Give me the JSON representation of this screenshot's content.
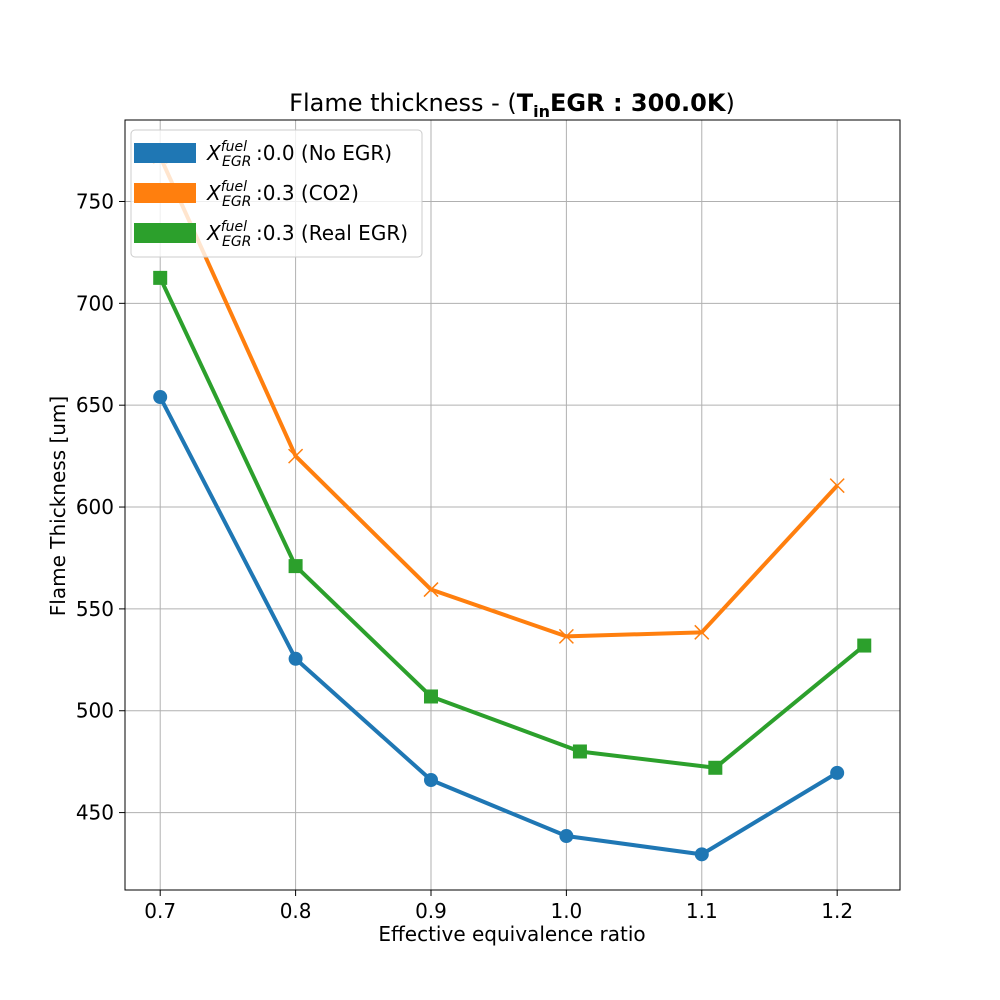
{
  "chart_data": {
    "type": "line",
    "title": {
      "prefix": "Flame thickness - (",
      "bold_main": "T",
      "bold_sub": "in",
      "bold_rest": "EGR : 300.0K",
      "suffix": ")"
    },
    "xlabel": "Effective equivalence ratio",
    "ylabel": "Flame Thickness [um]",
    "xlim": [
      0.674,
      1.2464
    ],
    "ylim": [
      412,
      790
    ],
    "xticks": [
      0.7,
      0.8,
      0.9,
      1.0,
      1.1,
      1.2
    ],
    "xtick_labels": [
      "0.7",
      "0.8",
      "0.9",
      "1.0",
      "1.1",
      "1.2"
    ],
    "yticks": [
      450,
      500,
      550,
      600,
      650,
      700,
      750
    ],
    "ytick_labels": [
      "450",
      "500",
      "550",
      "600",
      "650",
      "700",
      "750"
    ],
    "grid": true,
    "legend_position": "upper left",
    "series": [
      {
        "name": "0.0 (No EGR)",
        "legend_main": "X",
        "legend_sup": "fuel",
        "legend_sub": "EGR",
        "legend_rest": ":0.0 (No EGR)",
        "color": "#1f77b4",
        "marker": "circle",
        "x": [
          0.7,
          0.8,
          0.9,
          1.0,
          1.1,
          1.2
        ],
        "y": [
          654,
          525.5,
          466,
          438.5,
          429.5,
          469.5
        ]
      },
      {
        "name": "0.3 (CO2)",
        "legend_main": "X",
        "legend_sup": "fuel",
        "legend_sub": "EGR",
        "legend_rest": ":0.3 (CO2)",
        "color": "#ff7f0e",
        "marker": "x",
        "x": [
          0.7,
          0.8,
          0.9,
          1.0,
          1.1,
          1.2
        ],
        "y": [
          772,
          625,
          559.5,
          536.5,
          538.5,
          610.5
        ]
      },
      {
        "name": "0.3 (Real EGR)",
        "legend_main": "X",
        "legend_sup": "fuel",
        "legend_sub": "EGR",
        "legend_rest": ":0.3 (Real EGR)",
        "color": "#2ca02c",
        "marker": "square",
        "x": [
          0.7,
          0.8,
          0.9,
          1.01,
          1.11,
          1.22
        ],
        "y": [
          712.5,
          571,
          507,
          480,
          472,
          532
        ]
      }
    ]
  }
}
